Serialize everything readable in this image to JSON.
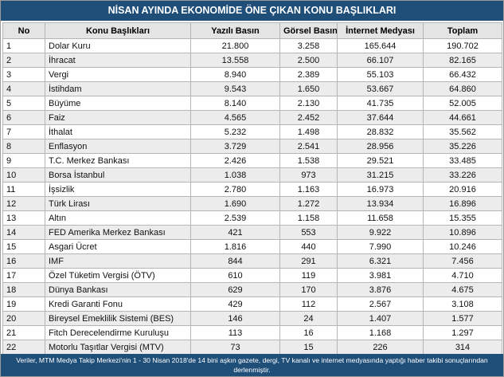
{
  "title": "NİSAN AYINDA EKONOMİDE ÖNE ÇIKAN KONU BAŞLIKLARI",
  "table": {
    "header": [
      "No",
      "Konu Başlıkları",
      "Yazılı Basın",
      "Görsel Basın",
      "İnternet Medyası",
      "Toplam"
    ],
    "rows": [
      [
        "1",
        "Dolar Kuru",
        "21.800",
        "3.258",
        "165.644",
        "190.702"
      ],
      [
        "2",
        "İhracat",
        "13.558",
        "2.500",
        "66.107",
        "82.165"
      ],
      [
        "3",
        "Vergi",
        "8.940",
        "2.389",
        "55.103",
        "66.432"
      ],
      [
        "4",
        "İstihdam",
        "9.543",
        "1.650",
        "53.667",
        "64.860"
      ],
      [
        "5",
        "Büyüme",
        "8.140",
        "2.130",
        "41.735",
        "52.005"
      ],
      [
        "6",
        "Faiz",
        "4.565",
        "2.452",
        "37.644",
        "44.661"
      ],
      [
        "7",
        "İthalat",
        "5.232",
        "1.498",
        "28.832",
        "35.562"
      ],
      [
        "8",
        "Enflasyon",
        "3.729",
        "2.541",
        "28.956",
        "35.226"
      ],
      [
        "9",
        "T.C. Merkez Bankası",
        "2.426",
        "1.538",
        "29.521",
        "33.485"
      ],
      [
        "10",
        "Borsa İstanbul",
        "1.038",
        "973",
        "31.215",
        "33.226"
      ],
      [
        "11",
        "İşsizlik",
        "2.780",
        "1.163",
        "16.973",
        "20.916"
      ],
      [
        "12",
        "Türk Lirası",
        "1.690",
        "1.272",
        "13.934",
        "16.896"
      ],
      [
        "13",
        "Altın",
        "2.539",
        "1.158",
        "11.658",
        "15.355"
      ],
      [
        "14",
        "FED Amerika Merkez Bankası",
        "421",
        "553",
        "9.922",
        "10.896"
      ],
      [
        "15",
        "Asgari Ücret",
        "1.816",
        "440",
        "7.990",
        "10.246"
      ],
      [
        "16",
        "IMF",
        "844",
        "291",
        "6.321",
        "7.456"
      ],
      [
        "17",
        "Özel Tüketim Vergisi (ÖTV)",
        "610",
        "119",
        "3.981",
        "4.710"
      ],
      [
        "18",
        "Dünya Bankası",
        "629",
        "170",
        "3.876",
        "4.675"
      ],
      [
        "19",
        "Kredi Garanti Fonu",
        "429",
        "112",
        "2.567",
        "3.108"
      ],
      [
        "20",
        "Bireysel Emeklilik Sistemi (BES)",
        "146",
        "24",
        "1.407",
        "1.577"
      ],
      [
        "21",
        "Fitch Derecelendirme Kuruluşu",
        "113",
        "16",
        "1.168",
        "1.297"
      ],
      [
        "22",
        "Motorlu Taşıtlar Vergisi (MTV)",
        "73",
        "15",
        "226",
        "314"
      ]
    ]
  },
  "footer": "Veriler, MTM Medya Takip Merkezi'nin 1 - 30 Nisan 2018'de 14 bini aşkın gazete, dergi, TV kanalı ve internet medyasında yaptığı haber takibi sonuçlarından derlenmiştir."
}
